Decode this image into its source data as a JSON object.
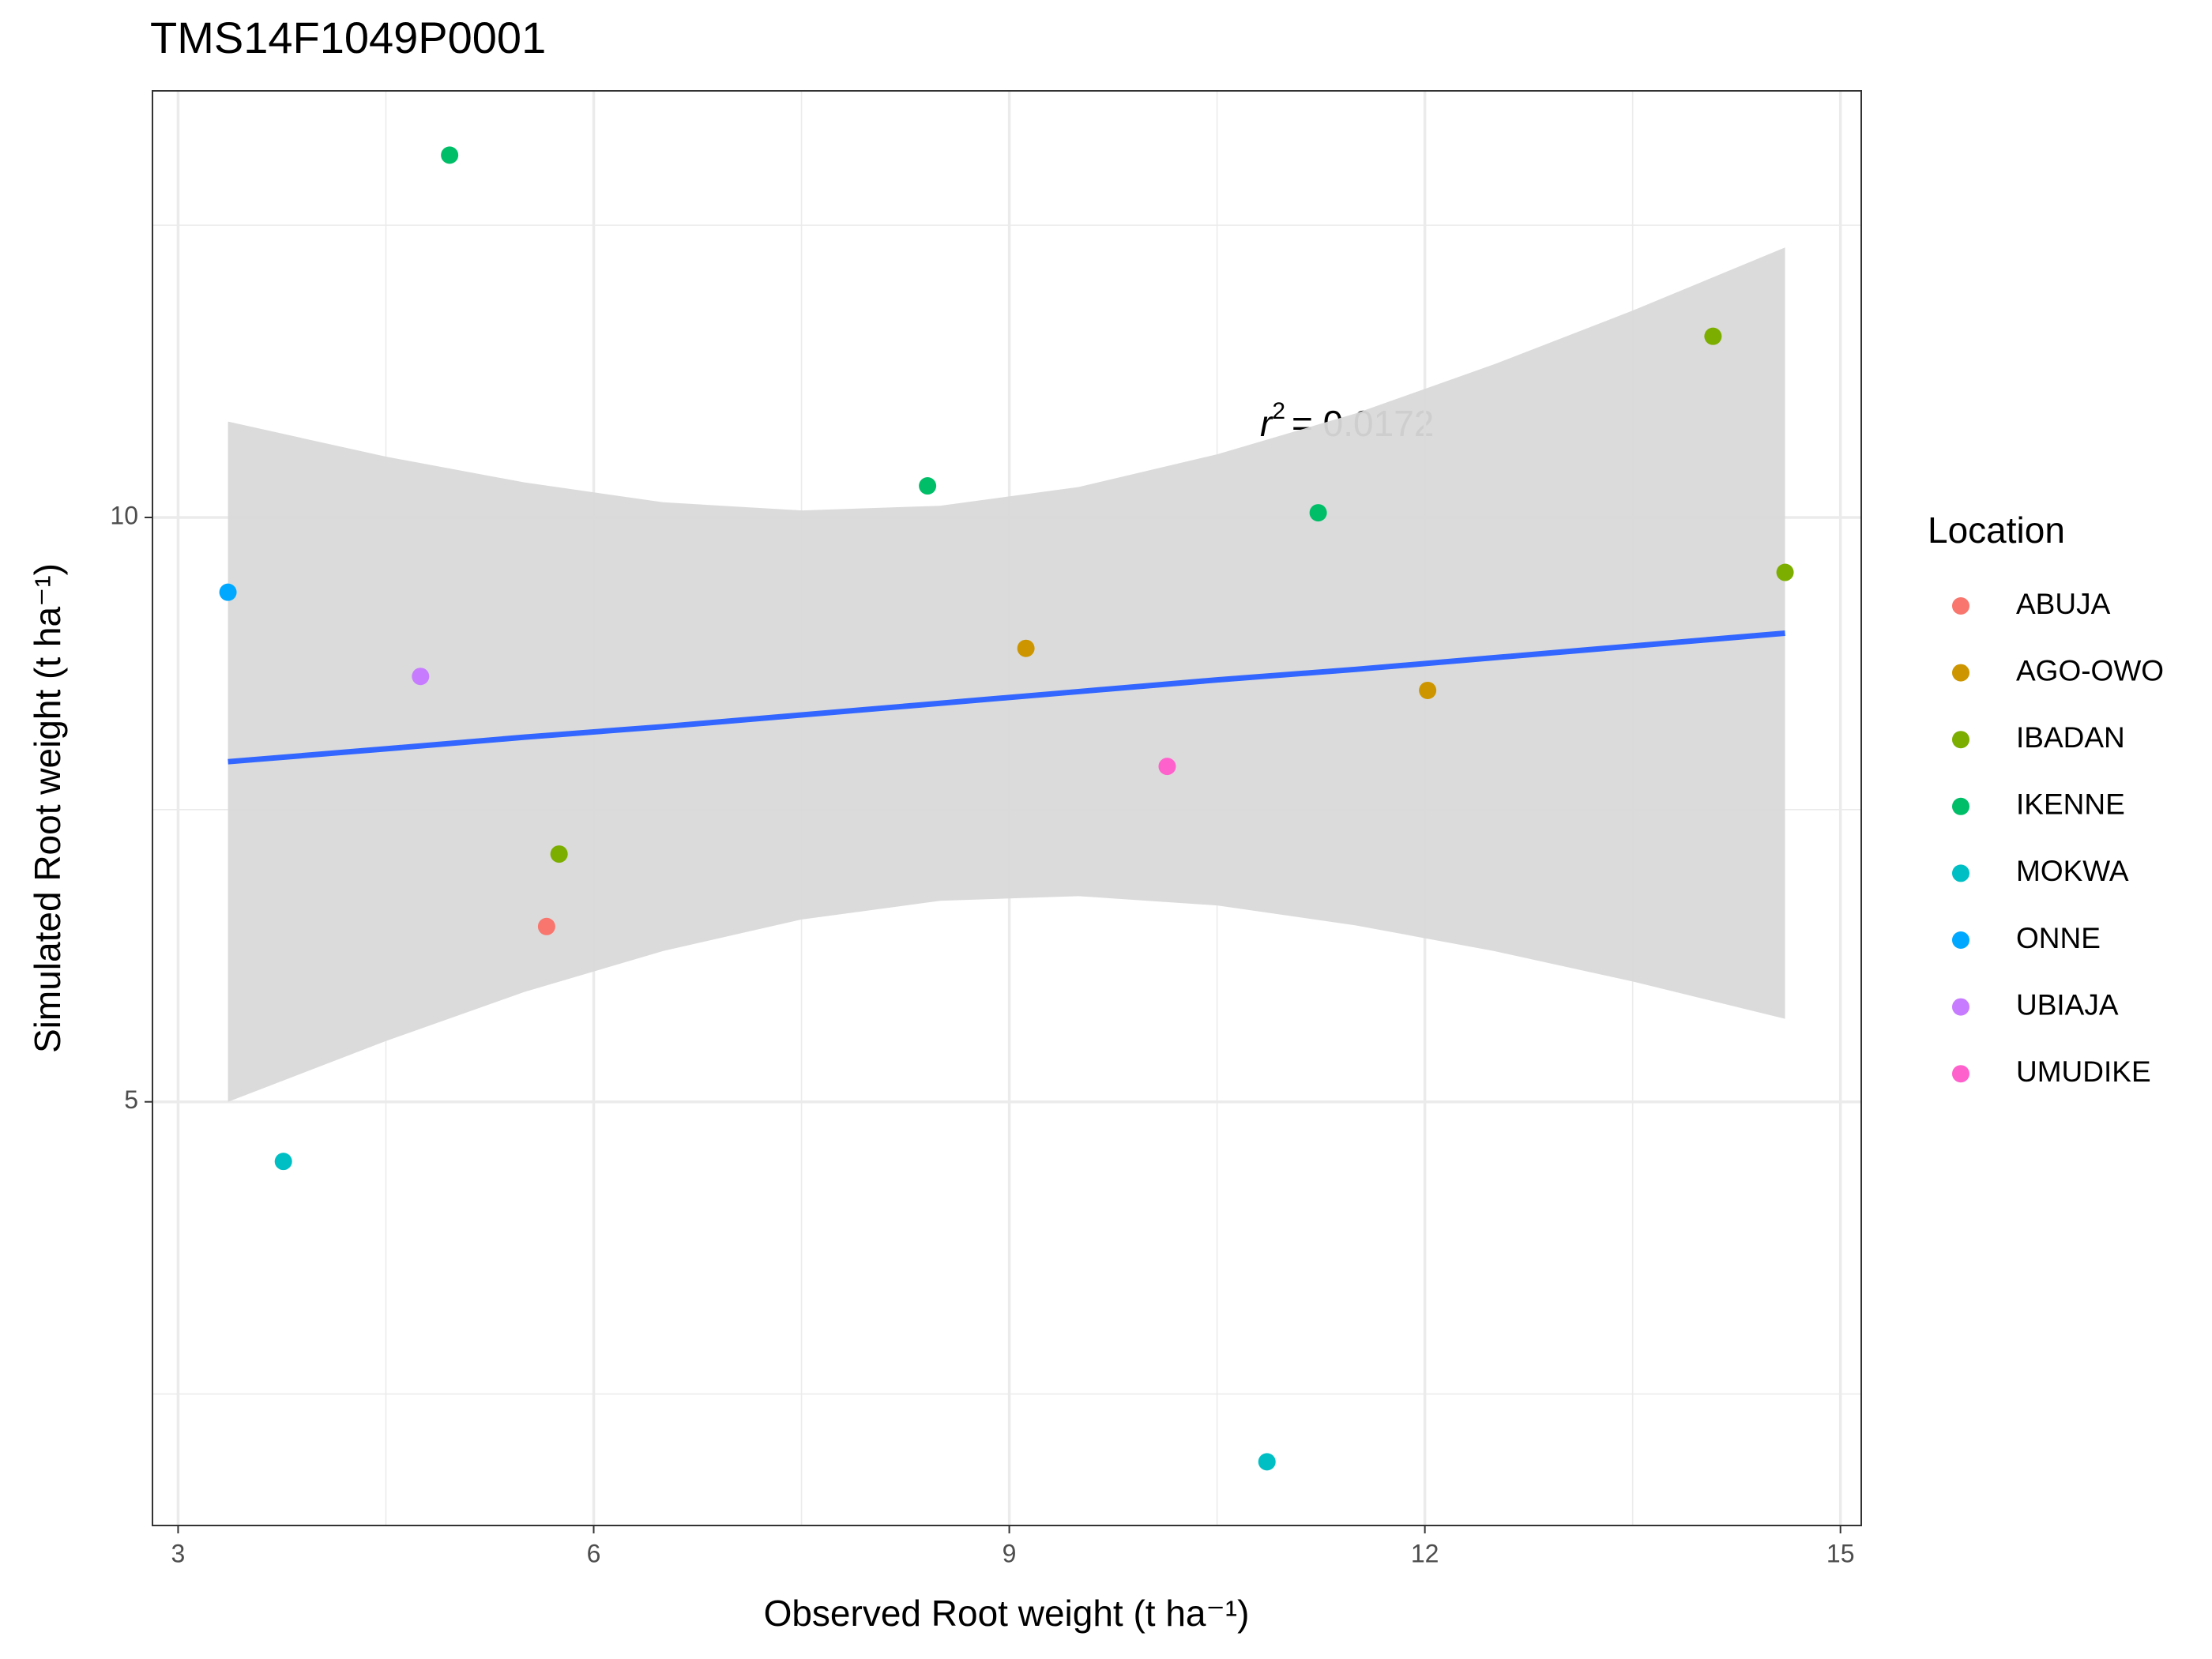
{
  "chart_data": {
    "type": "scatter",
    "title": "TMS14F1049P0001",
    "x_label": "Observed Root weight (t ha⁻¹)",
    "y_label": "Simulated Root weight (t ha⁻¹)",
    "legend_title": "Location",
    "legend_position": "right",
    "xlim": [
      2.815,
      15.15
    ],
    "ylim": [
      1.375,
      13.65
    ],
    "xticks": [
      3,
      6,
      9,
      12,
      15
    ],
    "yticks": [
      5,
      10
    ],
    "minor_xticks": [
      4.5,
      7.5,
      10.5,
      13.5
    ],
    "minor_yticks": [
      2.5,
      7.5,
      12.5
    ],
    "grid": true,
    "series": [
      {
        "name": "ABUJA",
        "color": "#F8766D",
        "x": [
          5.66
        ],
        "values": [
          6.5
        ]
      },
      {
        "name": "AGO-OWO",
        "color": "#CD9600",
        "x": [
          9.12,
          12.02
        ],
        "values": [
          8.88,
          8.52
        ]
      },
      {
        "name": "IBADAN",
        "color": "#7CAE00",
        "x": [
          5.75,
          14.08,
          14.6
        ],
        "values": [
          7.12,
          11.55,
          9.53
        ]
      },
      {
        "name": "IKENNE",
        "color": "#00BE67",
        "x": [
          4.96,
          8.41,
          11.23
        ],
        "values": [
          13.1,
          10.27,
          10.04
        ]
      },
      {
        "name": "MOKWA",
        "color": "#00BFC4",
        "x": [
          3.76,
          10.86
        ],
        "values": [
          4.49,
          1.92
        ]
      },
      {
        "name": "ONNE",
        "color": "#00A9FF",
        "x": [
          3.36
        ],
        "values": [
          9.36
        ]
      },
      {
        "name": "UBIAJA",
        "color": "#C77CFF",
        "x": [
          4.75
        ],
        "values": [
          8.64
        ]
      },
      {
        "name": "UMUDIKE",
        "color": "#FF61CC",
        "x": [
          10.14
        ],
        "values": [
          7.87
        ]
      }
    ],
    "fit": {
      "color": "#3366FF",
      "band_color": "#d9d9d9",
      "x": [
        3.36,
        4.5,
        5.5,
        6.5,
        7.5,
        8.5,
        9.5,
        10.5,
        11.5,
        12.5,
        13.5,
        14.6
      ],
      "values": [
        7.91,
        8.02,
        8.12,
        8.21,
        8.31,
        8.41,
        8.51,
        8.61,
        8.7,
        8.8,
        8.9,
        9.01
      ],
      "upper": [
        10.82,
        10.52,
        10.3,
        10.13,
        10.06,
        10.1,
        10.26,
        10.54,
        10.89,
        11.31,
        11.77,
        12.31
      ],
      "lower": [
        5.0,
        5.52,
        5.94,
        6.29,
        6.56,
        6.72,
        6.76,
        6.68,
        6.51,
        6.29,
        6.03,
        5.71
      ]
    },
    "annotation": {
      "symbol": "r",
      "exponent": "2",
      "text": "= 0.0172"
    }
  }
}
